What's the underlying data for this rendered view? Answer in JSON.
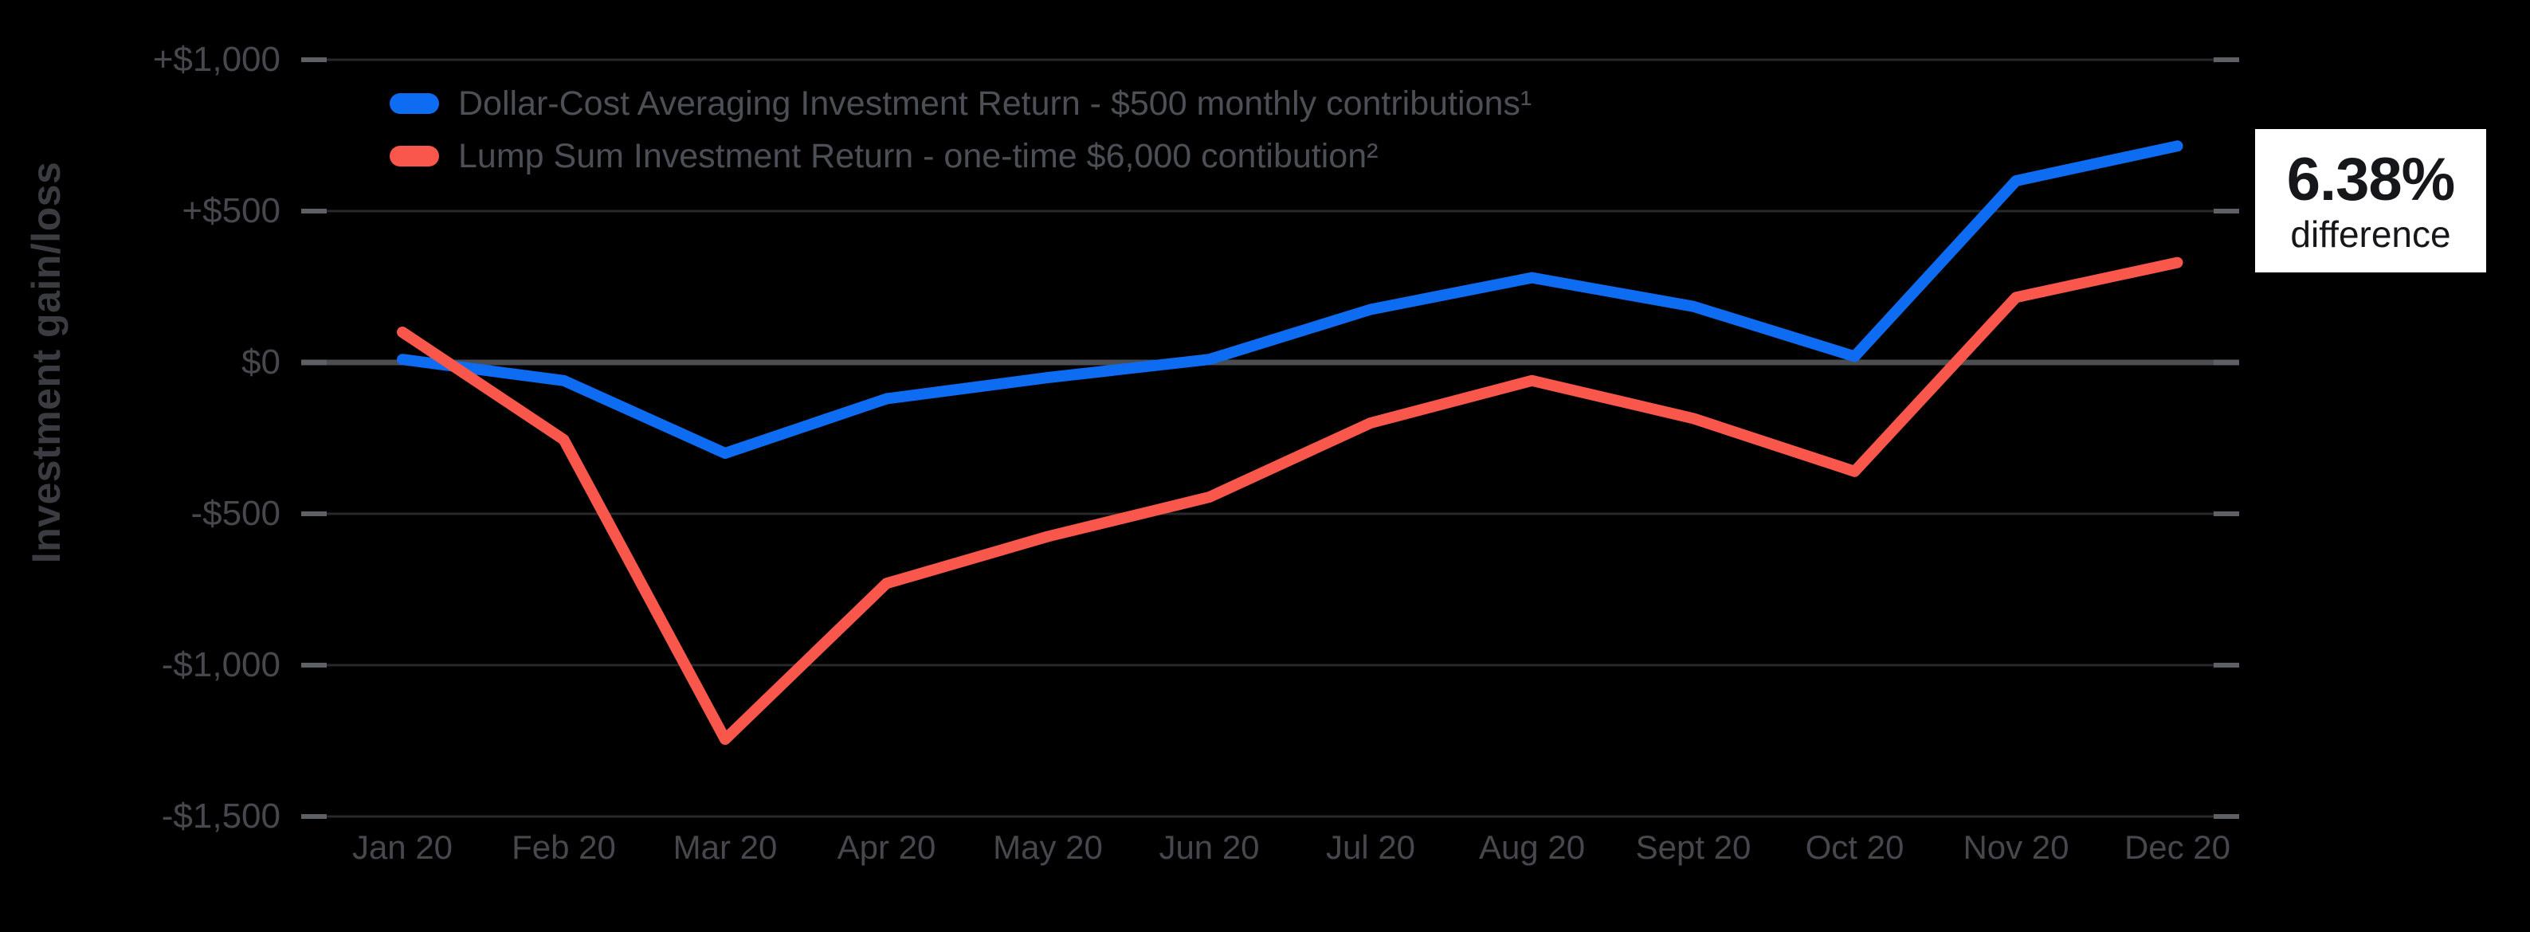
{
  "chart": {
    "background": "#000000",
    "y_axis": {
      "title": "Investment gain/loss",
      "ticks": [
        {
          "label": "+$1,000",
          "value": 1000
        },
        {
          "label": "+$500",
          "value": 500
        },
        {
          "label": "$0",
          "value": 0
        },
        {
          "label": "-$500",
          "value": -500
        },
        {
          "label": "-$1,000",
          "value": -1000
        },
        {
          "label": "-$1,500",
          "value": -1500
        }
      ]
    },
    "stat_box": {
      "value": "6.38%",
      "caption": "difference"
    },
    "colors": {
      "background": "#000000",
      "gridline": "#28292b",
      "zero_line": "#4b4d51",
      "tick_dash": "#5d6064",
      "dca_line": "#0d6cf2",
      "lump_sum_line": "#f9564c",
      "card_background": "#ffffff",
      "card_text": "#16171a"
    }
  },
  "chart_data": {
    "type": "line",
    "title": "",
    "ylabel": "Investment gain/loss",
    "xlabel": "",
    "ylim": [
      -1500,
      1000
    ],
    "grid": true,
    "legend_position": "top-left",
    "categories": [
      "Jan 20",
      "Feb 20",
      "Mar 20",
      "Apr 20",
      "May 20",
      "Jun 20",
      "Jul 20",
      "Aug 20",
      "Sept 20",
      "Oct 20",
      "Nov 20",
      "Dec 20"
    ],
    "series": [
      {
        "name": "Dollar-Cost Averaging Investment Return - $500 monthly contributions¹",
        "color": "#0d6cf2",
        "values": [
          10,
          -60,
          -300,
          -120,
          -50,
          10,
          175,
          280,
          185,
          20,
          600,
          715
        ]
      },
      {
        "name": "Lump Sum Investment Return - one-time $6,000 contibution²",
        "color": "#f9564c",
        "values": [
          100,
          -255,
          -1245,
          -730,
          -575,
          -445,
          -200,
          -60,
          -185,
          -360,
          215,
          330
        ]
      }
    ],
    "annotation": {
      "value": "6.38%",
      "caption": "difference"
    }
  }
}
